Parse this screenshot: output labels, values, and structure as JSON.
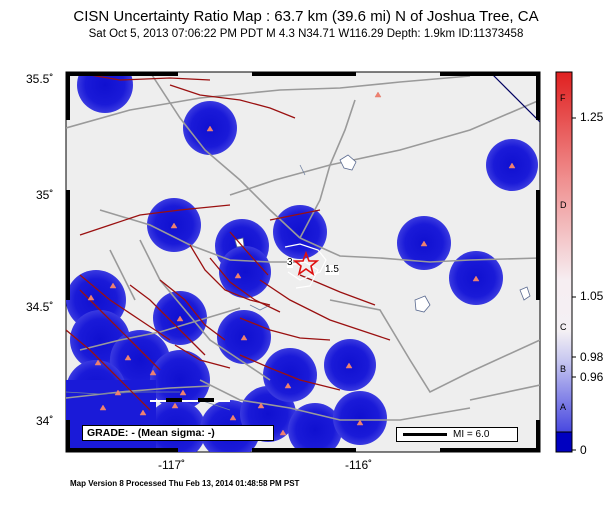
{
  "header": {
    "title": "CISN Uncertainty Ratio Map : 63.7 km (39.6 mi) N of Joshua Tree, CA",
    "subtitle": "Sat Oct  5, 2013 07:06:22 PM PDT   M 4.3   N34.71 W116.29   Depth: 1.9km   ID:11373458"
  },
  "axes": {
    "lat_ticks": [
      "35.5˚",
      "35˚",
      "34.5˚",
      "34˚"
    ],
    "lon_ticks": [
      "-117˚",
      "-116˚"
    ]
  },
  "colorbar": {
    "values": [
      "1.25",
      "1.05",
      "0.98",
      "0.96",
      "0"
    ],
    "grades": [
      "F",
      "D",
      "C",
      "B",
      "A"
    ],
    "colors": {
      "high": "#e01010",
      "mid": "#f4f0f4",
      "low": "#5050e0",
      "zero": "#0000c0"
    }
  },
  "legend": {
    "grade_text": "GRADE: - (Mean sigma: -)",
    "mi_text": "MI = 6.0"
  },
  "map_labels": {
    "contour_3": "3",
    "contour_1_5": "1.5"
  },
  "footer": "Map Version 8 Processed Thu Feb 13, 2014 01:48:58 PM PST"
}
